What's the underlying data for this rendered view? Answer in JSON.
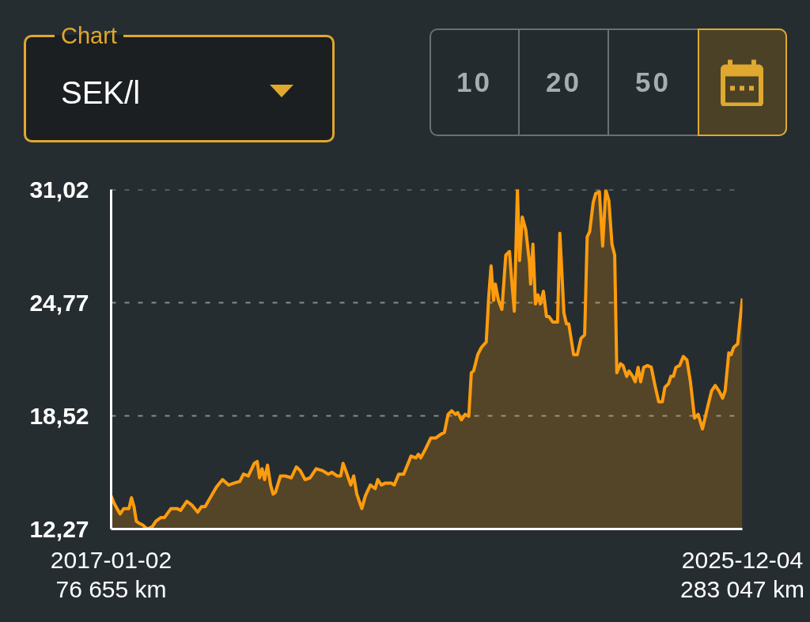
{
  "chart_data": {
    "type": "area",
    "title": "SEK/l",
    "annotations": [
      "Chart",
      "10",
      "20",
      "50"
    ],
    "color": "#ff9c0d",
    "x": [
      "2017-01-02",
      "2017-01-17",
      "2017-02-17",
      "2017-03-08",
      "2017-04-04",
      "2017-04-17",
      "2017-04-30",
      "2017-05-12",
      "2017-05-25",
      "2017-06-13",
      "2017-07-08",
      "2017-08-02",
      "2017-08-21",
      "2017-09-15",
      "2017-10-04",
      "2017-11-07",
      "2017-12-08",
      "2017-12-27",
      "2018-01-28",
      "2018-02-22",
      "2018-03-25",
      "2018-04-13",
      "2018-05-02",
      "2018-06-03",
      "2018-06-30",
      "2018-07-31",
      "2018-09-01",
      "2018-09-26",
      "2018-10-28",
      "2018-11-16",
      "2018-12-11",
      "2019-01-11",
      "2019-01-26",
      "2019-02-07",
      "2019-02-20",
      "2019-03-05",
      "2019-03-20",
      "2019-04-05",
      "2019-04-18",
      "2019-04-30",
      "2019-05-26",
      "2019-06-20",
      "2019-07-21",
      "2019-08-16",
      "2019-09-05",
      "2019-09-30",
      "2019-10-26",
      "2019-11-26",
      "2019-12-28",
      "2020-01-28",
      "2020-02-16",
      "2020-03-13",
      "2020-04-01",
      "2020-04-13",
      "2020-04-27",
      "2020-05-23",
      "2020-06-07",
      "2020-06-23",
      "2020-07-19",
      "2020-08-06",
      "2020-09-01",
      "2020-09-26",
      "2020-10-09",
      "2020-10-28",
      "2020-11-15",
      "2020-12-19",
      "2021-01-02",
      "2021-01-25",
      "2021-02-20",
      "2021-03-11",
      "2021-03-30",
      "2021-04-24",
      "2021-05-07",
      "2021-05-19",
      "2021-06-13",
      "2021-07-10",
      "2021-08-05",
      "2021-08-30",
      "2021-09-18",
      "2021-10-07",
      "2021-10-26",
      "2021-11-14",
      "2021-11-26",
      "2021-12-15",
      "2022-01-03",
      "2022-01-22",
      "2022-02-04",
      "2022-02-16",
      "2022-03-09",
      "2022-03-28",
      "2022-04-22",
      "2022-05-05",
      "2022-05-17",
      "2022-05-30",
      "2022-06-08",
      "2022-06-24",
      "2022-07-12",
      "2022-08-01",
      "2022-08-20",
      "2022-09-02",
      "2022-09-14",
      "2022-09-30",
      "2022-10-11",
      "2022-10-25",
      "2022-11-12",
      "2022-12-01",
      "2022-12-07",
      "2022-12-19",
      "2023-01-01",
      "2023-01-14",
      "2023-01-26",
      "2023-02-11",
      "2023-02-27",
      "2023-03-12",
      "2023-03-31",
      "2023-04-25",
      "2023-05-07",
      "2023-05-28",
      "2023-06-10",
      "2023-06-22",
      "2023-07-17",
      "2023-08-05",
      "2023-08-24",
      "2023-09-12",
      "2023-09-25",
      "2023-10-08",
      "2023-10-26",
      "2023-11-08",
      "2023-11-27",
      "2023-12-14",
      "2023-12-30",
      "2024-01-15",
      "2024-01-31",
      "2024-02-14",
      "2024-02-25",
      "2024-03-15",
      "2024-03-28",
      "2024-04-16",
      "2024-04-28",
      "2024-05-17",
      "2024-05-30",
      "2024-06-14",
      "2024-06-27",
      "2024-07-13",
      "2024-08-01",
      "2024-08-21",
      "2024-09-09",
      "2024-09-28",
      "2024-10-17",
      "2024-10-30",
      "2024-11-18",
      "2024-11-30",
      "2024-12-13",
      "2024-12-26",
      "2025-01-14",
      "2025-02-02",
      "2025-02-21",
      "2025-03-11",
      "2025-04-01",
      "2025-04-20",
      "2025-05-12",
      "2025-06-03",
      "2025-06-28",
      "2025-07-17",
      "2025-08-05",
      "2025-08-24",
      "2025-09-06",
      "2025-09-25",
      "2025-10-07",
      "2025-10-20",
      "2025-11-10",
      "2025-11-22",
      "2025-12-04"
    ],
    "values": [
      14.1,
      13.7,
      13.1,
      13.4,
      13.4,
      14.0,
      13.5,
      12.7,
      12.6,
      12.5,
      12.27,
      12.4,
      12.7,
      12.9,
      12.9,
      13.4,
      13.4,
      13.3,
      13.8,
      13.6,
      13.2,
      13.5,
      13.5,
      14.1,
      14.6,
      15.0,
      14.7,
      14.8,
      14.9,
      15.3,
      15.2,
      15.9,
      16.0,
      15.1,
      15.6,
      15.0,
      15.8,
      14.7,
      14.2,
      14.3,
      15.2,
      15.2,
      15.1,
      15.7,
      15.5,
      15.0,
      15.1,
      15.6,
      15.5,
      15.3,
      15.4,
      15.2,
      15.2,
      15.9,
      15.5,
      14.7,
      15.2,
      14.2,
      13.4,
      14.1,
      14.7,
      14.5,
      15.0,
      14.7,
      14.8,
      14.8,
      14.7,
      15.3,
      15.3,
      15.8,
      16.3,
      16.2,
      16.4,
      16.2,
      16.7,
      17.3,
      17.3,
      17.5,
      17.6,
      18.6,
      18.8,
      18.6,
      18.7,
      18.3,
      18.6,
      18.5,
      20.9,
      21.0,
      21.9,
      22.3,
      22.6,
      25.1,
      26.8,
      24.9,
      25.8,
      24.9,
      24.4,
      27.4,
      27.6,
      25.8,
      24.3,
      31.02,
      27.1,
      29.5,
      28.8,
      27.0,
      25.8,
      28.0,
      24.7,
      25.2,
      24.7,
      25.4,
      24.0,
      24.0,
      23.7,
      23.7,
      28.6,
      24.2,
      23.6,
      23.6,
      21.9,
      21.9,
      22.8,
      23.0,
      28.4,
      28.7,
      30.3,
      30.8,
      30.9,
      27.9,
      31.0,
      30.4,
      28.0,
      27.4,
      20.9,
      21.4,
      21.3,
      20.7,
      21.0,
      20.7,
      20.4,
      21.2,
      20.4,
      21.2,
      21.3,
      21.2,
      20.2,
      19.3,
      19.3,
      20.1,
      20.3,
      20.7,
      20.7,
      21.2,
      21.3,
      21.8,
      21.6,
      20.4,
      18.4,
      18.6,
      17.8,
      18.8,
      19.9,
      20.2,
      19.9,
      19.5,
      19.9,
      22.0,
      21.9,
      22.3,
      22.5,
      23.8,
      25.0
    ],
    "xlim": [
      "2017-01-02",
      "2025-12-04"
    ],
    "xticks": [
      {
        "value": "2017-01-02",
        "label": "2017-01-02\n76 655 km"
      },
      {
        "value": "2025-12-04",
        "label": "2025-12-04\n283 047 km"
      }
    ],
    "ylim": [
      12.27,
      31.02
    ],
    "yticks": [
      {
        "value": 12.27,
        "label": "12,27"
      },
      {
        "value": 18.52,
        "label": "18,52"
      },
      {
        "value": 24.77,
        "label": "24,77"
      },
      {
        "value": 31.02,
        "label": "31,02"
      }
    ],
    "grid": "y"
  }
}
